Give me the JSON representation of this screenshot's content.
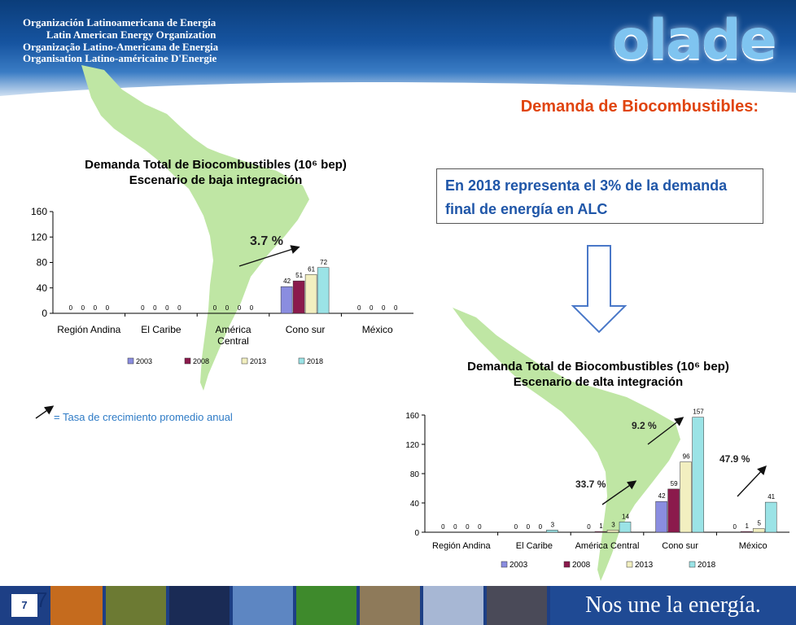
{
  "header": {
    "org_names": [
      "Organización Latinoamericana de Energía",
      "Latin American Energy Organization",
      "Organização Latino-Americana de Energia",
      "Organisation Latino-américaine D'Energie"
    ],
    "logo_text": "olade"
  },
  "title": "Demanda de Biocombustibles:",
  "callout": "En 2018 representa el 3% de la demanda final de energía en ALC",
  "legend_note": "= Tasa de crecimiento promedio anual",
  "growth_rates": {
    "chart1": "3.7 %",
    "chart2": [
      "33.7 %",
      "9.2 %",
      "47.9 %"
    ]
  },
  "colors": {
    "s2003": "#8a8de0",
    "s2008": "#8b1a4c",
    "s2013": "#f2efc0",
    "s2018": "#9be3e6",
    "title_red": "#e0440e",
    "callout_blue": "#1f56a8",
    "map_green": "#bfe6a4"
  },
  "chart_data": [
    {
      "type": "bar",
      "title": "Demanda Total de Biocombustibles (10⁶ bep)",
      "subtitle": "Escenario de baja integración",
      "categories": [
        "Región Andina",
        "El Caribe",
        "América Central",
        "Cono sur",
        "México"
      ],
      "series": [
        {
          "name": "2003",
          "values": [
            0,
            0,
            0,
            42,
            0
          ]
        },
        {
          "name": "2008",
          "values": [
            0,
            0,
            0,
            51,
            0
          ]
        },
        {
          "name": "2013",
          "values": [
            0,
            0,
            0,
            61,
            0
          ]
        },
        {
          "name": "2018",
          "values": [
            0,
            0,
            0,
            72,
            0
          ]
        }
      ],
      "ylim": [
        0,
        160
      ],
      "yticks": [
        "0",
        "40",
        "80",
        "120",
        "160"
      ],
      "legend": "bottom"
    },
    {
      "type": "bar",
      "title": "Demanda Total de Biocombustibles (10⁶ bep)",
      "subtitle": "Escenario de alta integración",
      "categories": [
        "Región Andina",
        "El Caribe",
        "América Central",
        "Cono sur",
        "México"
      ],
      "series": [
        {
          "name": "2003",
          "values": [
            0,
            0,
            0,
            42,
            0
          ]
        },
        {
          "name": "2008",
          "values": [
            0,
            0,
            1,
            59,
            1
          ]
        },
        {
          "name": "2013",
          "values": [
            0,
            0,
            3,
            96,
            5
          ]
        },
        {
          "name": "2018",
          "values": [
            0,
            3,
            14,
            157,
            41
          ]
        }
      ],
      "ylim": [
        0,
        160
      ],
      "yticks": [
        "0",
        "40",
        "80",
        "120",
        "160"
      ],
      "legend": "bottom"
    }
  ],
  "footer": {
    "page_number": "7",
    "page_number_large": "7",
    "slogan": "Nos une la energía."
  }
}
